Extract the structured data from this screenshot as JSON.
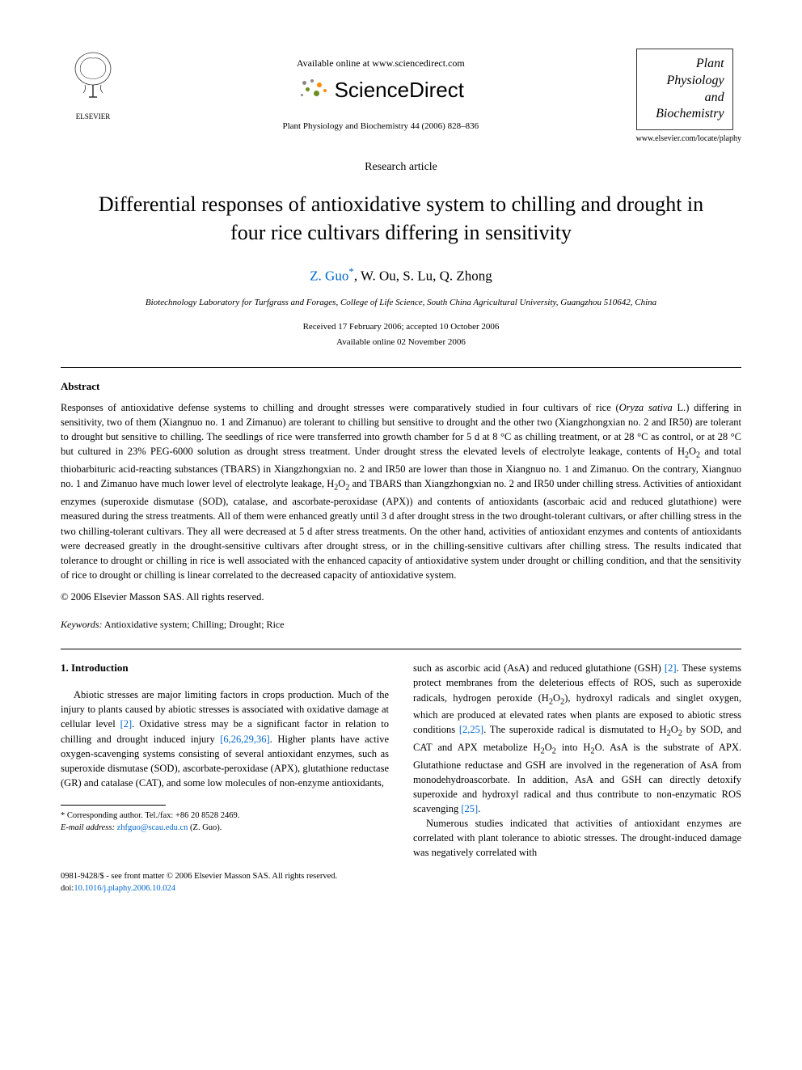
{
  "header": {
    "available_online": "Available online at www.sciencedirect.com",
    "sciencedirect_text": "ScienceDirect",
    "journal_ref": "Plant Physiology and Biochemistry 44 (2006) 828–836",
    "elsevier_label": "ELSEVIER",
    "journal_name_lines": [
      "Plant",
      "Physiology",
      "and",
      "Biochemistry"
    ],
    "journal_url": "www.elsevier.com/locate/plaphy"
  },
  "article": {
    "type": "Research article",
    "title": "Differential responses of antioxidative system to chilling and drought in four rice cultivars differing in sensitivity",
    "authors_prefix": "Z. Guo",
    "authors_suffix": ", W. Ou, S. Lu, Q. Zhong",
    "affiliation": "Biotechnology Laboratory for Turfgrass and Forages, College of Life Science, South China Agricultural University, Guangzhou 510642, China",
    "received": "Received 17 February 2006; accepted 10 October 2006",
    "available_online_date": "Available online 02 November 2006"
  },
  "abstract": {
    "heading": "Abstract",
    "body_html": "Responses of antioxidative defense systems to chilling and drought stresses were comparatively studied in four cultivars of rice (<i>Oryza sativa</i> L.) differing in sensitivity, two of them (Xiangnuo no. 1 and Zimanuo) are tolerant to chilling but sensitive to drought and the other two (Xiangzhongxian no. 2 and IR50) are tolerant to drought but sensitive to chilling. The seedlings of rice were transferred into growth chamber for 5 d at 8 °C as chilling treatment, or at 28 °C as control, or at 28 °C but cultured in 23% PEG-6000 solution as drought stress treatment. Under drought stress the elevated levels of electrolyte leakage, contents of H<sub>2</sub>O<sub>2</sub> and total thiobarbituric acid-reacting substances (TBARS) in Xiangzhongxian no. 2 and IR50 are lower than those in Xiangnuo no. 1 and Zimanuo. On the contrary, Xiangnuo no. 1 and Zimanuo have much lower level of electrolyte leakage, H<sub>2</sub>O<sub>2</sub> and TBARS than Xiangzhongxian no. 2 and IR50 under chilling stress. Activities of antioxidant enzymes (superoxide dismutase (SOD), catalase, and ascorbate-peroxidase (APX)) and contents of antioxidants (ascorbaic acid and reduced glutathione) were measured during the stress treatments. All of them were enhanced greatly until 3 d after drought stress in the two drought-tolerant cultivars, or after chilling stress in the two chilling-tolerant cultivars. They all were decreased at 5 d after stress treatments. On the other hand, activities of antioxidant enzymes and contents of antioxidants were decreased greatly in the drought-sensitive cultivars after drought stress, or in the chilling-sensitive cultivars after chilling stress. The results indicated that tolerance to drought or chilling in rice is well associated with the enhanced capacity of antioxidative system under drought or chilling condition, and that the sensitivity of rice to drought or chilling is linear correlated to the decreased capacity of antioxidative system.",
    "copyright": "© 2006 Elsevier Masson SAS. All rights reserved."
  },
  "keywords": {
    "label": "Keywords:",
    "text": " Antioxidative system; Chilling; Drought; Rice"
  },
  "intro": {
    "heading": "1. Introduction",
    "left_para_html": "Abiotic stresses are major limiting factors in crops production. Much of the injury to plants caused by abiotic stresses is associated with oxidative damage at cellular level <span class=\"ref-link\">[2]</span>. Oxidative stress may be a significant factor in relation to chilling and drought induced injury <span class=\"ref-link\">[6,26,29,36]</span>. Higher plants have active oxygen-scavenging systems consisting of several antioxidant enzymes, such as superoxide dismutase (SOD), ascorbate-peroxidase (APX), glutathione reductase (GR) and catalase (CAT), and some low molecules of non-enzyme antioxidants,",
    "right_para1_html": "such as ascorbic acid (AsA) and reduced glutathione (GSH) <span class=\"ref-link\">[2]</span>. These systems protect membranes from the deleterious effects of ROS, such as superoxide radicals, hydrogen peroxide (H<sub>2</sub>O<sub>2</sub>), hydroxyl radicals and singlet oxygen, which are produced at elevated rates when plants are exposed to abiotic stress conditions <span class=\"ref-link\">[2,25]</span>. The superoxide radical is dismutated to H<sub>2</sub>O<sub>2</sub> by SOD, and CAT and APX metabolize H<sub>2</sub>O<sub>2</sub> into H<sub>2</sub>O. AsA is the substrate of APX. Glutathione reductase and GSH are involved in the regeneration of AsA from monodehydroascorbate. In addition, AsA and GSH can directly detoxify superoxide and hydroxyl radical and thus contribute to non-enzymatic ROS scavenging <span class=\"ref-link\">[25]</span>.",
    "right_para2_html": "Numerous studies indicated that activities of antioxidant enzymes are correlated with plant tolerance to abiotic stresses. The drought-induced damage was negatively correlated with"
  },
  "footnote": {
    "corresponding": "* Corresponding author. Tel./fax: +86 20 8528 2469.",
    "email_label": "E-mail address:",
    "email": "zhfguo@scau.edu.cn",
    "email_suffix": " (Z. Guo)."
  },
  "bottom": {
    "issn_line": "0981-9428/$ - see front matter © 2006 Elsevier Masson SAS. All rights reserved.",
    "doi_label": "doi:",
    "doi": "10.1016/j.plaphy.2006.10.024"
  },
  "colors": {
    "link": "#0066cc",
    "text": "#000000",
    "sd_orange": "#ff8c00",
    "sd_green": "#6b8e23",
    "sd_gray": "#888888"
  }
}
